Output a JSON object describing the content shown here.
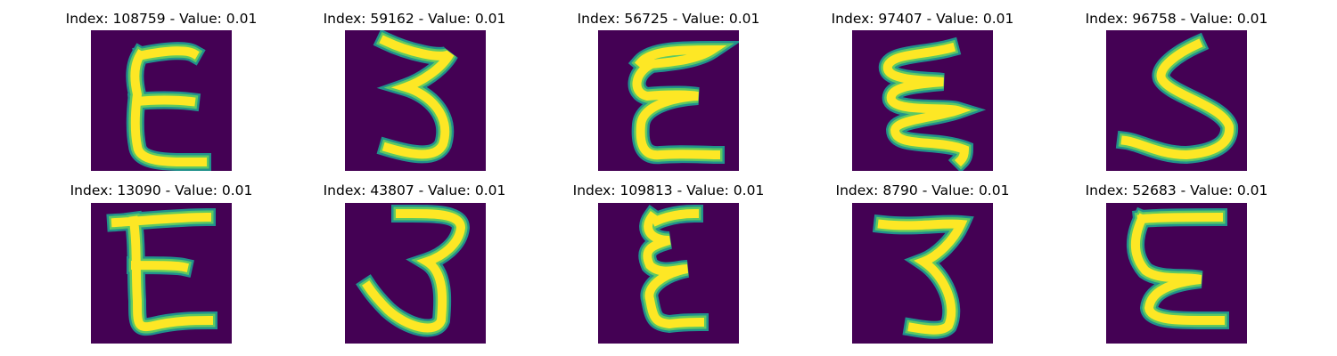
{
  "figure": {
    "background_color": "#ffffff",
    "panel_color": "#440154",
    "stroke_outer_color": "#21918c",
    "stroke_mid_color": "#5ec962",
    "stroke_core_color": "#fde725"
  },
  "panels": [
    {
      "title": "Index: 108759 - Value: 0.01",
      "glyph": "E"
    },
    {
      "title": "Index: 59162 - Value: 0.01",
      "glyph": "3"
    },
    {
      "title": "Index: 56725 - Value: 0.01",
      "glyph": "E"
    },
    {
      "title": "Index: 97407 - Value: 0.01",
      "glyph": "E"
    },
    {
      "title": "Index: 96758 - Value: 0.01",
      "glyph": "S"
    },
    {
      "title": "Index: 13090 - Value: 0.01",
      "glyph": "E"
    },
    {
      "title": "Index: 43807 - Value: 0.01",
      "glyph": "3"
    },
    {
      "title": "Index: 109813 - Value: 0.01",
      "glyph": "E"
    },
    {
      "title": "Index: 8790 - Value: 0.01",
      "glyph": "3"
    },
    {
      "title": "Index: 52683 - Value: 0.01",
      "glyph": "E"
    }
  ]
}
